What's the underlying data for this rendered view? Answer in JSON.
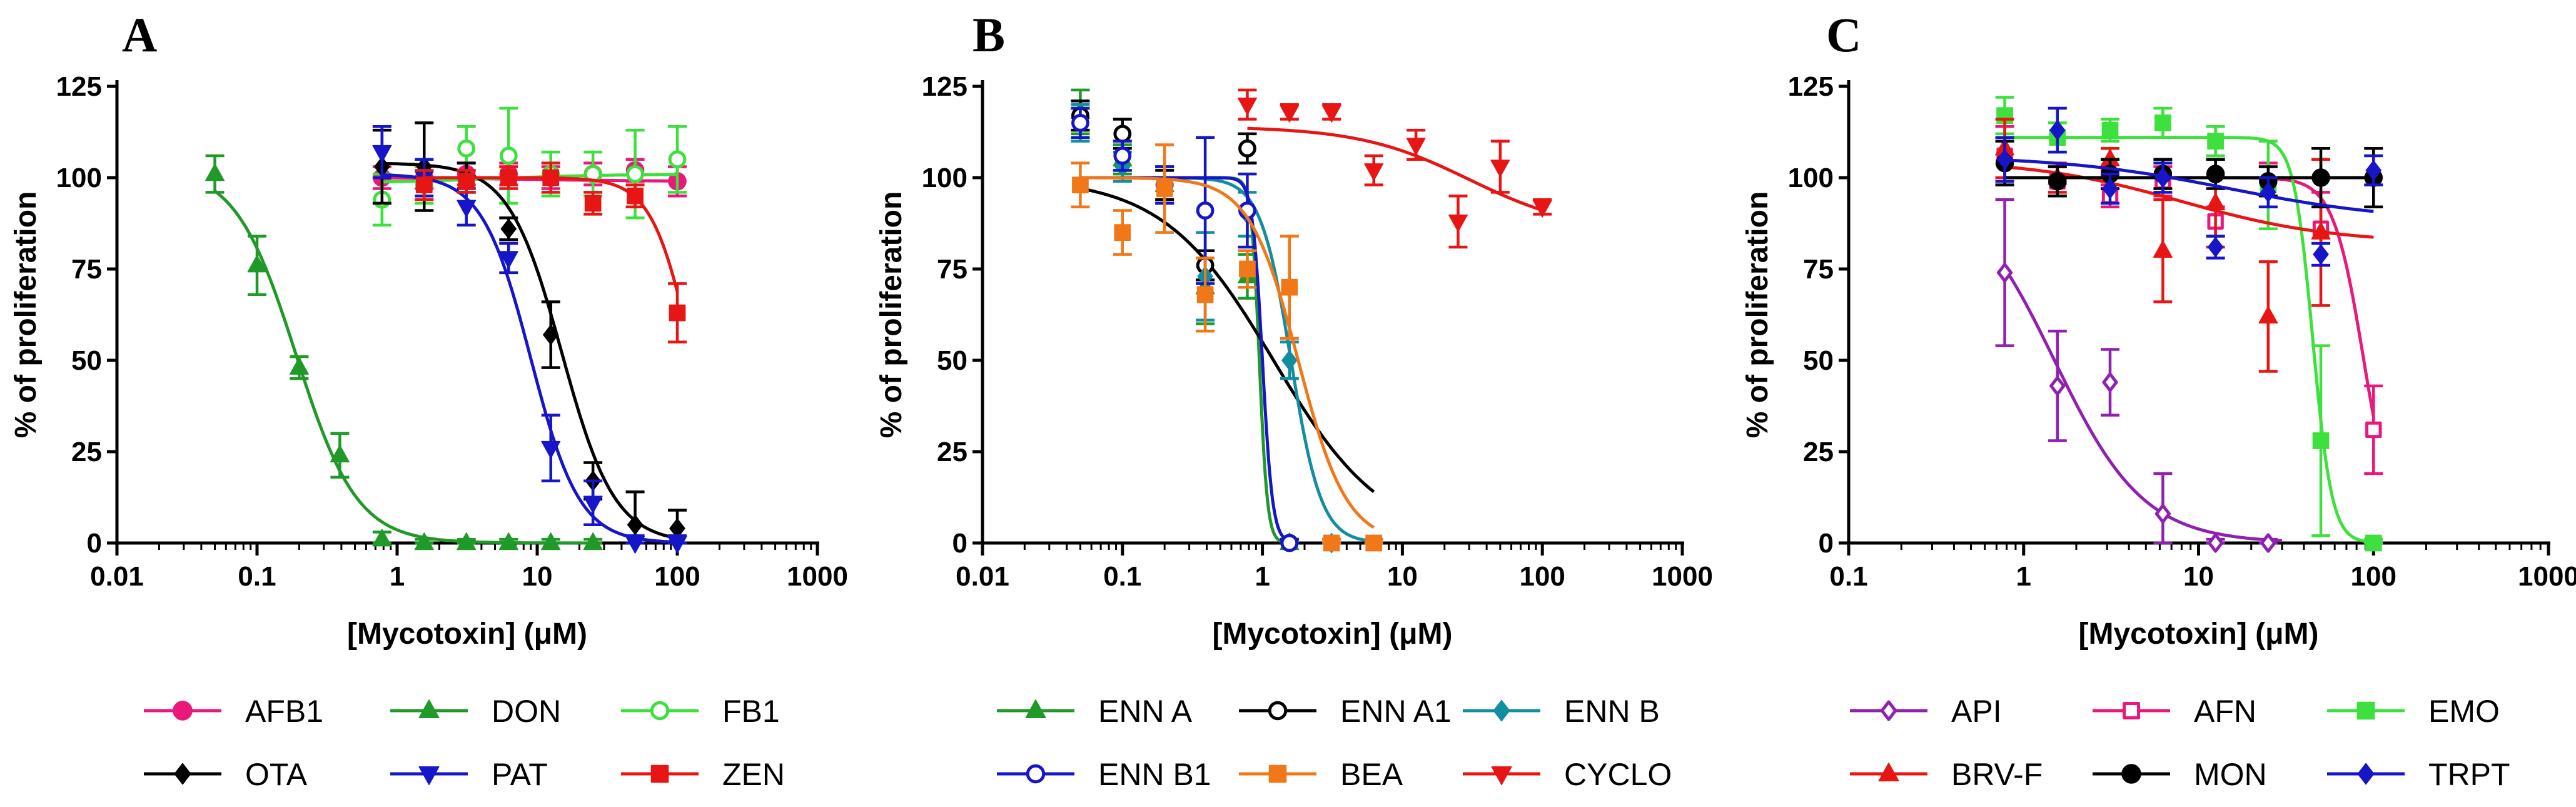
{
  "chart_data": [
    {
      "panel": "A",
      "type": "line",
      "xscale": "log",
      "xlim": [
        0.01,
        1000
      ],
      "ylim": [
        0,
        125
      ],
      "xticks": [
        "0.01",
        "0.1",
        "1",
        "10",
        "100",
        "1000"
      ],
      "yticks": [
        "0",
        "25",
        "50",
        "75",
        "100",
        "125"
      ],
      "xlabel": "[Mycotoxin] (μM)",
      "ylabel": "% of proliferation",
      "series": [
        {
          "name": "AFB1",
          "color": "#e8197a",
          "marker": "circle",
          "fill": true,
          "x": [
            0.78,
            1.56,
            3.12,
            6.25,
            12.5,
            25,
            50,
            100
          ],
          "y": [
            100,
            100,
            101,
            101,
            100,
            101,
            102,
            99
          ],
          "err": [
            3,
            3,
            3,
            3,
            3,
            3,
            3,
            4
          ],
          "curve": {
            "type": "sigmoid",
            "top": 100,
            "bottom": 99,
            "ec50": 10,
            "hill": 1
          }
        },
        {
          "name": "DON",
          "color": "#1f9a28",
          "marker": "triangle-up",
          "fill": true,
          "x": [
            0.05,
            0.1,
            0.2,
            0.39,
            0.78,
            1.56,
            3.12,
            6.25,
            12.5,
            25
          ],
          "y": [
            101,
            76,
            48,
            24,
            1,
            0,
            0,
            0,
            0,
            0
          ],
          "err": [
            5,
            8,
            3,
            6,
            2,
            1,
            1,
            1,
            1,
            1
          ],
          "curve": {
            "type": "sigmoid",
            "top": 103,
            "bottom": 0,
            "ec50": 0.19,
            "hill": 2.0
          }
        },
        {
          "name": "FB1",
          "color": "#3de03d",
          "marker": "circle",
          "fill": false,
          "x": [
            0.78,
            1.56,
            3.12,
            6.25,
            12.5,
            25,
            50,
            100
          ],
          "y": [
            94,
            98,
            108,
            106,
            101,
            101,
            101,
            105
          ],
          "err": [
            7,
            5,
            6,
            13,
            6,
            6,
            12,
            9
          ],
          "curve": {
            "type": "sigmoid",
            "top": 98.5,
            "bottom": 101,
            "ec50": 5,
            "hill": 1
          }
        },
        {
          "name": "OTA",
          "color": "#000000",
          "marker": "diamond",
          "fill": true,
          "x": [
            0.78,
            1.56,
            3.12,
            6.25,
            12.5,
            25,
            50,
            100
          ],
          "y": [
            103,
            103,
            100,
            86,
            57,
            17,
            5,
            4
          ],
          "err": [
            10,
            12,
            4,
            3,
            9,
            5,
            9,
            5
          ],
          "curve": {
            "type": "sigmoid",
            "top": 104,
            "bottom": 0,
            "ec50": 15,
            "hill": 2.3
          }
        },
        {
          "name": "PAT",
          "color": "#1616c8",
          "marker": "triangle-down",
          "fill": true,
          "x": [
            0.78,
            1.56,
            3.12,
            6.25,
            12.5,
            25,
            50,
            100
          ],
          "y": [
            107,
            100,
            92,
            78,
            26,
            11,
            0,
            0
          ],
          "err": [
            7,
            5,
            5,
            4,
            9,
            6,
            2,
            2
          ],
          "curve": {
            "type": "sigmoid",
            "top": 101,
            "bottom": 0,
            "ec50": 9,
            "hill": 2.5
          }
        },
        {
          "name": "ZEN",
          "color": "#e81515",
          "marker": "square",
          "fill": true,
          "x": [
            1.56,
            3.12,
            6.25,
            12.5,
            25,
            50,
            100
          ],
          "y": [
            98,
            99,
            100,
            100,
            93,
            95,
            63
          ],
          "err": [
            4,
            3,
            3,
            4,
            3,
            3,
            8
          ],
          "curve": {
            "type": "sigmoid",
            "top": 100,
            "bottom": 0,
            "ec50": 130,
            "hill": 3
          }
        }
      ]
    },
    {
      "panel": "B",
      "type": "line",
      "xscale": "log",
      "xlim": [
        0.01,
        1000
      ],
      "ylim": [
        0,
        125
      ],
      "xticks": [
        "0.01",
        "0.1",
        "1",
        "10",
        "100",
        "1000"
      ],
      "yticks": [
        "0",
        "25",
        "50",
        "75",
        "100",
        "125"
      ],
      "xlabel": "[Mycotoxin] (μM)",
      "ylabel": "% of proliferation",
      "series": [
        {
          "name": "ENN A",
          "color": "#1f9a28",
          "marker": "triangle-up",
          "fill": true,
          "x": [
            0.05,
            0.1,
            0.2,
            0.39,
            0.78,
            1.56
          ],
          "y": [
            118,
            105,
            98,
            70,
            73,
            0
          ],
          "err": [
            6,
            4,
            5,
            10,
            6,
            1
          ],
          "curve": {
            "type": "sigmoid",
            "top": 100,
            "bottom": 0,
            "ec50": 0.95,
            "hill": 15,
            "xmax": 1.6
          }
        },
        {
          "name": "ENN A1",
          "color": "#000000",
          "marker": "circle",
          "fill": false,
          "x": [
            0.05,
            0.1,
            0.2,
            0.39,
            0.78,
            1.56
          ],
          "y": [
            117,
            112,
            98,
            76,
            108,
            0
          ],
          "err": [
            4,
            4,
            4,
            4,
            4,
            1
          ],
          "curve": {
            "type": "sigmoid",
            "top": 100,
            "bottom": 0,
            "ec50": 1.2,
            "hill": 1.1,
            "xmax": 6.25
          }
        },
        {
          "name": "ENN B",
          "color": "#138ea0",
          "marker": "diamond",
          "fill": true,
          "x": [
            0.05,
            0.1,
            0.2,
            0.39,
            0.78,
            1.56,
            3.12
          ],
          "y": [
            115,
            103,
            98,
            73,
            90,
            50,
            0
          ],
          "err": [
            5,
            4,
            5,
            12,
            6,
            5,
            1
          ],
          "curve": {
            "type": "sigmoid",
            "top": 100,
            "bottom": 0,
            "ec50": 1.6,
            "hill": 4,
            "xmax": 6.25
          }
        },
        {
          "name": "ENN B1",
          "color": "#1616c8",
          "marker": "circle",
          "fill": false,
          "x": [
            0.05,
            0.1,
            0.2,
            0.39,
            0.78,
            1.56
          ],
          "y": [
            115,
            106,
            98,
            91,
            91,
            0
          ],
          "err": [
            4,
            4,
            5,
            20,
            10,
            1
          ],
          "curve": {
            "type": "sigmoid",
            "top": 100,
            "bottom": 0,
            "ec50": 1.0,
            "hill": 12,
            "xmax": 1.6
          }
        },
        {
          "name": "BEA",
          "color": "#f07818",
          "marker": "square",
          "fill": true,
          "x": [
            0.05,
            0.1,
            0.2,
            0.39,
            0.78,
            1.56,
            3.12,
            6.25
          ],
          "y": [
            98,
            85,
            97,
            68,
            75,
            70,
            0,
            0
          ],
          "err": [
            6,
            6,
            12,
            10,
            5,
            14,
            1,
            1
          ],
          "curve": {
            "type": "sigmoid",
            "top": 100,
            "bottom": 0,
            "ec50": 1.8,
            "hill": 2.5,
            "xmax": 6.25
          }
        },
        {
          "name": "CYCLO",
          "color": "#e81515",
          "marker": "triangle-down",
          "fill": true,
          "x": [
            0.78,
            1.56,
            3.12,
            6.25,
            12.5,
            25,
            50,
            100
          ],
          "y": [
            120,
            118,
            118,
            102,
            109,
            88,
            103,
            92
          ],
          "err": [
            4,
            2,
            2,
            4,
            4,
            7,
            7,
            2
          ],
          "curve": {
            "type": "sigmoid",
            "top": 114,
            "bottom": 85,
            "ec50": 30,
            "hill": 1.1,
            "xmin": 0.78
          }
        }
      ]
    },
    {
      "panel": "C",
      "type": "line",
      "xscale": "log",
      "xlim": [
        0.1,
        1000
      ],
      "ylim": [
        0,
        125
      ],
      "xticks": [
        "0.1",
        "1",
        "10",
        "100",
        "1000"
      ],
      "yticks": [
        "0",
        "25",
        "50",
        "75",
        "100",
        "125"
      ],
      "xlabel": "[Mycotoxin] (μM)",
      "ylabel": "% of proliferation",
      "series": [
        {
          "name": "API",
          "color": "#9020b0",
          "marker": "diamond",
          "fill": false,
          "x": [
            0.78,
            1.56,
            3.12,
            6.25,
            12.5,
            25
          ],
          "y": [
            74,
            43,
            44,
            8,
            0,
            0
          ],
          "err": [
            20,
            15,
            9,
            11,
            1,
            1
          ],
          "curve": {
            "type": "sigmoid",
            "top": 100,
            "bottom": 0,
            "ec50": 1.5,
            "hill": 1.7,
            "xmin": 0.78,
            "xmax": 30
          }
        },
        {
          "name": "AFN",
          "color": "#e8197a",
          "marker": "square",
          "fill": false,
          "x": [
            0.78,
            1.56,
            3.12,
            6.25,
            12.5,
            25,
            50,
            100
          ],
          "y": [
            106,
            99,
            95,
            99,
            88,
            98,
            86,
            31
          ],
          "err": [
            8,
            4,
            3,
            4,
            4,
            6,
            10,
            12
          ],
          "curve": {
            "type": "sigmoid",
            "top": 100,
            "bottom": 0,
            "ec50": 88,
            "hill": 5,
            "xmin": 0.78,
            "xmax": 100
          }
        },
        {
          "name": "EMO",
          "color": "#3de03d",
          "marker": "square",
          "fill": true,
          "x": [
            0.78,
            1.56,
            3.12,
            6.25,
            12.5,
            25,
            50,
            100
          ],
          "y": [
            117,
            111,
            113,
            115,
            110,
            98,
            28,
            0
          ],
          "err": [
            5,
            4,
            3,
            4,
            4,
            12,
            26,
            1
          ],
          "curve": {
            "type": "sigmoid",
            "top": 111,
            "bottom": 0,
            "ec50": 45,
            "hill": 8,
            "xmin": 0.78,
            "xmax": 100
          }
        },
        {
          "name": "BRV-F",
          "color": "#e81515",
          "marker": "triangle-up",
          "fill": true,
          "x": [
            0.78,
            1.56,
            3.12,
            6.25,
            12.5,
            25,
            50
          ],
          "y": [
            108,
            100,
            105,
            80,
            93,
            62,
            85
          ],
          "err": [
            8,
            4,
            3,
            14,
            12,
            15,
            20
          ],
          "curve": {
            "type": "sigmoid",
            "top": 105,
            "bottom": 82,
            "ec50": 8,
            "hill": 1,
            "xmin": 0.78,
            "xmax": 100
          }
        },
        {
          "name": "MON",
          "color": "#000000",
          "marker": "circle",
          "fill": true,
          "x": [
            0.78,
            1.56,
            3.12,
            6.25,
            12.5,
            25,
            50,
            100
          ],
          "y": [
            104,
            99,
            101,
            101,
            101,
            99,
            100,
            100
          ],
          "err": [
            6,
            4,
            4,
            4,
            4,
            4,
            8,
            8
          ],
          "curve": {
            "type": "sigmoid",
            "top": 100,
            "bottom": 100,
            "ec50": 10,
            "hill": 1,
            "xmin": 0.78,
            "xmax": 100
          }
        },
        {
          "name": "TRPT",
          "color": "#1616c8",
          "marker": "diamond",
          "fill": true,
          "x": [
            0.78,
            1.56,
            3.12,
            6.25,
            12.5,
            25,
            50,
            100
          ],
          "y": [
            105,
            113,
            97,
            100,
            81,
            96,
            79,
            102
          ],
          "err": [
            6,
            6,
            4,
            4,
            3,
            4,
            3,
            4
          ],
          "curve": {
            "type": "sigmoid",
            "top": 106,
            "bottom": 88,
            "ec50": 15,
            "hill": 0.9,
            "xmin": 0.78,
            "xmax": 100
          }
        }
      ]
    }
  ]
}
